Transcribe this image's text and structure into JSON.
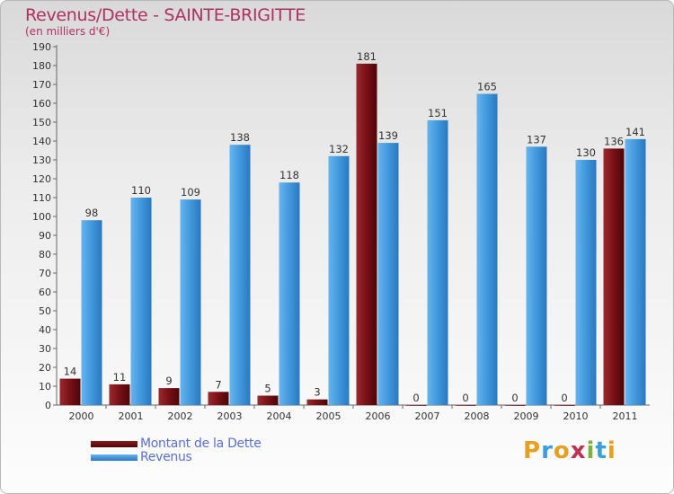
{
  "header": {
    "title": "Revenus/Dette - SAINTE-BRIGITTE",
    "subtitle": "(en milliers d'€)"
  },
  "legend": {
    "items": [
      {
        "label": "Montant de la Dette",
        "color": "#6e0a12"
      },
      {
        "label": "Revenus",
        "color": "#3b8fd8"
      }
    ]
  },
  "logo": {
    "letters": [
      "P",
      "r",
      "o",
      "x",
      "i",
      "t",
      "i"
    ],
    "colors": [
      "#e8a020",
      "#3ea0d8",
      "#e8a020",
      "#c03050",
      "#80b040",
      "#3ea0d8",
      "#e8a020"
    ]
  },
  "chart_data": {
    "type": "bar",
    "title": "Revenus/Dette - SAINTE-BRIGITTE",
    "ylabel": "(en milliers d'€)",
    "xlabel": "",
    "categories": [
      "2000",
      "2001",
      "2002",
      "2003",
      "2004",
      "2005",
      "2006",
      "2007",
      "2008",
      "2009",
      "2010",
      "2011"
    ],
    "series": [
      {
        "name": "Montant de la Dette",
        "color": "#6e0a12",
        "values": [
          14,
          11,
          9,
          7,
          5,
          3,
          181,
          0,
          0,
          0,
          0,
          136
        ]
      },
      {
        "name": "Revenus",
        "color": "#3b8fd8",
        "values": [
          98,
          110,
          109,
          138,
          118,
          132,
          139,
          151,
          165,
          137,
          130,
          141
        ]
      }
    ],
    "ylim": [
      0,
      190
    ],
    "ytick_step": 10,
    "grid": false,
    "legend_position": "bottom-left"
  }
}
